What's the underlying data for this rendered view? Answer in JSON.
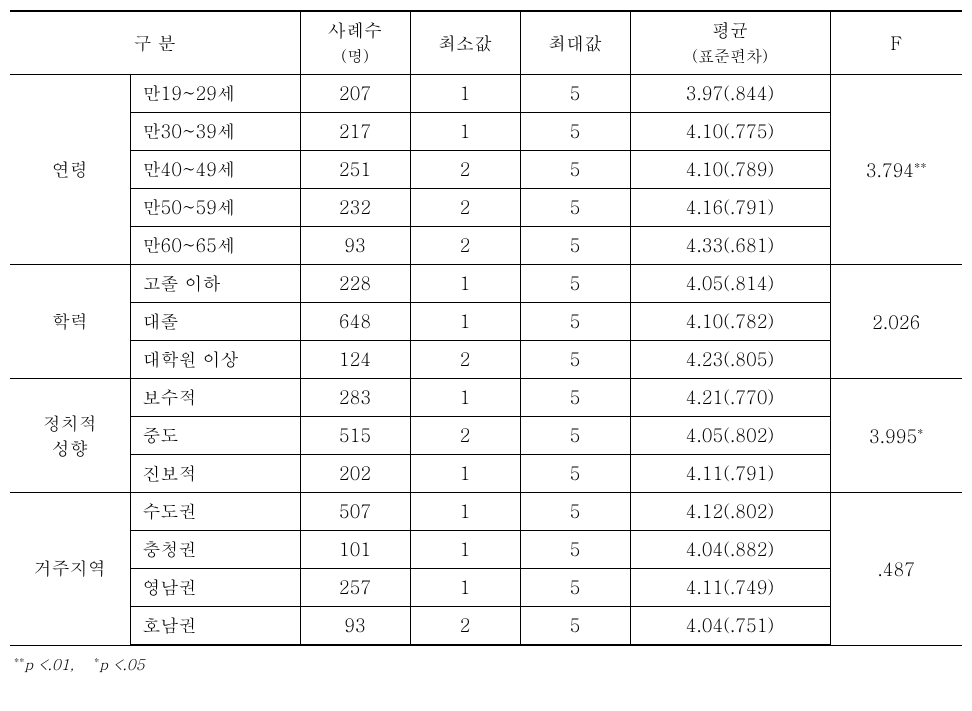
{
  "table": {
    "header": {
      "category": "구   분",
      "n_label": "사례수",
      "n_sub": "(명)",
      "min": "최소값",
      "max": "최대값",
      "mean_label": "평균",
      "mean_sub": "(표준편차)",
      "F": "F"
    },
    "groups": [
      {
        "label": "연령",
        "F": "3.794",
        "F_star": "**",
        "rows": [
          {
            "sub": "만19~29세",
            "n": "207",
            "min": "1",
            "max": "5",
            "mean": "3.97(.844)"
          },
          {
            "sub": "만30~39세",
            "n": "217",
            "min": "1",
            "max": "5",
            "mean": "4.10(.775)"
          },
          {
            "sub": "만40~49세",
            "n": "251",
            "min": "2",
            "max": "5",
            "mean": "4.10(.789)"
          },
          {
            "sub": "만50~59세",
            "n": "232",
            "min": "2",
            "max": "5",
            "mean": "4.16(.791)"
          },
          {
            "sub": "만60~65세",
            "n": "93",
            "min": "2",
            "max": "5",
            "mean": "4.33(.681)"
          }
        ]
      },
      {
        "label": "학력",
        "F": "2.026",
        "F_star": "",
        "rows": [
          {
            "sub": "고졸 이하",
            "n": "228",
            "min": "1",
            "max": "5",
            "mean": "4.05(.814)"
          },
          {
            "sub": "대졸",
            "n": "648",
            "min": "1",
            "max": "5",
            "mean": "4.10(.782)"
          },
          {
            "sub": "대학원 이상",
            "n": "124",
            "min": "2",
            "max": "5",
            "mean": "4.23(.805)"
          }
        ]
      },
      {
        "label": "정치적\n성향",
        "F": "3.995",
        "F_star": "*",
        "rows": [
          {
            "sub": "보수적",
            "n": "283",
            "min": "1",
            "max": "5",
            "mean": "4.21(.770)"
          },
          {
            "sub": "중도",
            "n": "515",
            "min": "2",
            "max": "5",
            "mean": "4.05(.802)"
          },
          {
            "sub": "진보적",
            "n": "202",
            "min": "1",
            "max": "5",
            "mean": "4.11(.791)"
          }
        ]
      },
      {
        "label": "거주지역",
        "F": ".487",
        "F_star": "",
        "rows": [
          {
            "sub": "수도권",
            "n": "507",
            "min": "1",
            "max": "5",
            "mean": "4.12(.802)"
          },
          {
            "sub": "충청권",
            "n": "101",
            "min": "1",
            "max": "5",
            "mean": "4.04(.882)"
          },
          {
            "sub": "영남권",
            "n": "257",
            "min": "1",
            "max": "5",
            "mean": "4.11(.749)"
          },
          {
            "sub": "호남권",
            "n": "93",
            "min": "2",
            "max": "5",
            "mean": "4.04(.751)"
          }
        ]
      }
    ],
    "footnote_parts": {
      "dstar": "**",
      "p01": "p <.01,",
      "sstar": "*",
      "p05": "p <.05"
    }
  }
}
